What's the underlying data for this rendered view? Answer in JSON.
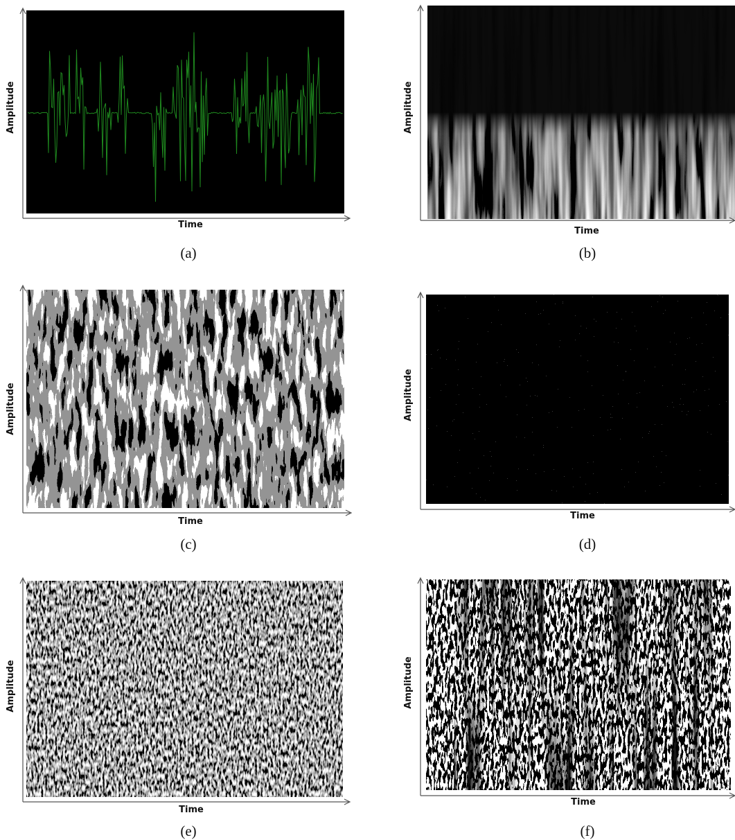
{
  "panels": [
    {
      "caption": "(a)",
      "y_label": "Amplitude",
      "x_label": "Time"
    },
    {
      "caption": "(b)",
      "y_label": "Amplitude",
      "x_label": "Time"
    },
    {
      "caption": "(c)",
      "y_label": "Amplitude",
      "x_label": "Time"
    },
    {
      "caption": "(d)",
      "y_label": "Amplitude",
      "x_label": "Time"
    },
    {
      "caption": "(e)",
      "y_label": "Amplitude",
      "x_label": "Time"
    },
    {
      "caption": "(f)",
      "y_label": "Amplitude",
      "x_label": "Time"
    }
  ]
}
